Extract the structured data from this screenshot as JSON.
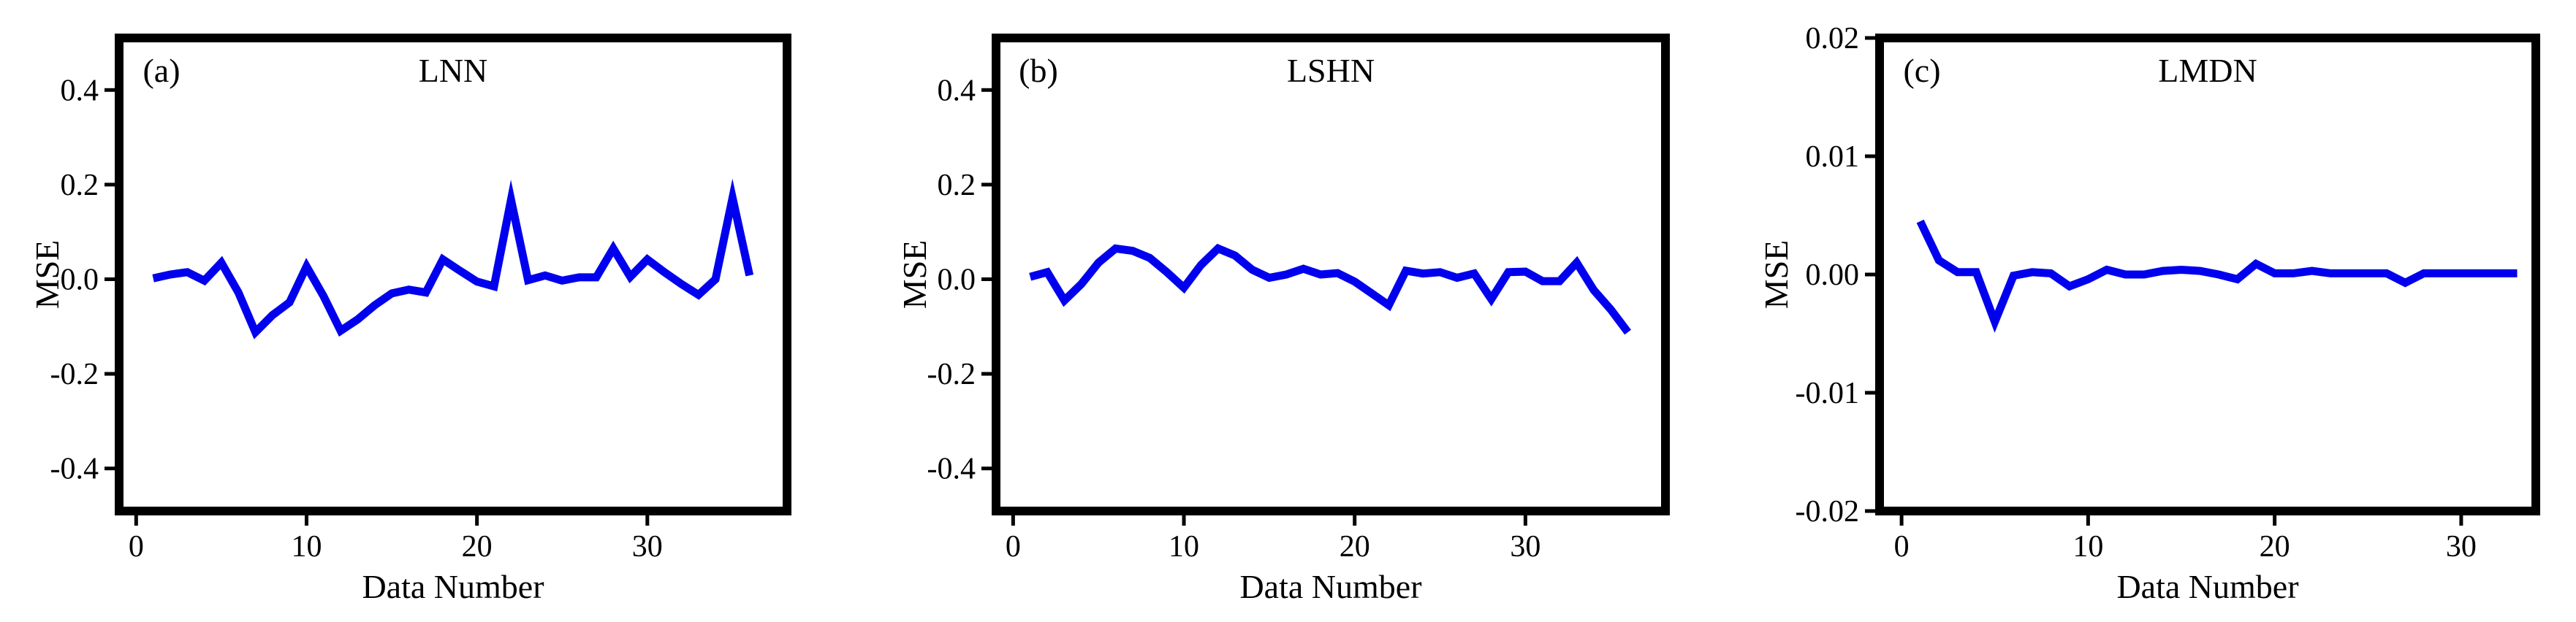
{
  "figure": {
    "background": "#ffffff",
    "border_color": "#000000",
    "text_color": "#000000",
    "accent_line_color": "#0000ee"
  },
  "chart_data": [
    {
      "type": "line",
      "panel_label": "(a)",
      "title": "LNN",
      "xlabel": "Data Number",
      "ylabel": "MSE",
      "line_color": "#0000ee",
      "grid": false,
      "legend": false,
      "xlim": [
        -1,
        38.2
      ],
      "ylim": [
        -0.49,
        0.51
      ],
      "xticks": {
        "values": [
          0,
          10,
          20,
          30
        ],
        "labels": [
          "0",
          "10",
          "20",
          "30"
        ]
      },
      "yticks": {
        "values": [
          0.4,
          0.2,
          0.0,
          -0.2,
          -0.4
        ],
        "labels": [
          "0.4",
          "0.2",
          "0.0",
          "-0.2",
          "-0.4"
        ]
      },
      "x": [
        1,
        2,
        3,
        4,
        5,
        6,
        7,
        8,
        9,
        10,
        11,
        12,
        13,
        14,
        15,
        16,
        17,
        18,
        19,
        20,
        21,
        22,
        23,
        24,
        25,
        26,
        27,
        28,
        29,
        30,
        31,
        32,
        33,
        34,
        35,
        36
      ],
      "y": [
        0.002,
        0.01,
        0.015,
        -0.003,
        0.035,
        -0.028,
        -0.112,
        -0.076,
        -0.049,
        0.027,
        -0.036,
        -0.109,
        -0.085,
        -0.055,
        -0.03,
        -0.022,
        -0.028,
        0.042,
        0.018,
        -0.005,
        -0.015,
        0.168,
        -0.002,
        0.008,
        -0.003,
        0.004,
        0.004,
        0.065,
        0.005,
        0.042,
        0.015,
        -0.01,
        -0.033,
        0.0,
        0.172,
        0.008
      ]
    },
    {
      "type": "line",
      "panel_label": "(b)",
      "title": "LSHN",
      "xlabel": "Data Number",
      "ylabel": "MSE",
      "line_color": "#0000ee",
      "grid": false,
      "legend": false,
      "xlim": [
        -1,
        38.2
      ],
      "ylim": [
        -0.49,
        0.51
      ],
      "xticks": {
        "values": [
          0,
          10,
          20,
          30
        ],
        "labels": [
          "0",
          "10",
          "20",
          "30"
        ]
      },
      "yticks": {
        "values": [
          0.4,
          0.2,
          0.0,
          -0.2,
          -0.4
        ],
        "labels": [
          "0.4",
          "0.2",
          "0.0",
          "-0.2",
          "-0.4"
        ]
      },
      "x": [
        1,
        2,
        3,
        4,
        5,
        6,
        7,
        8,
        9,
        10,
        11,
        12,
        13,
        14,
        15,
        16,
        17,
        18,
        19,
        20,
        21,
        22,
        23,
        24,
        25,
        26,
        27,
        28,
        29,
        30,
        31,
        32,
        33,
        34,
        35,
        36
      ],
      "y": [
        0.005,
        0.015,
        -0.045,
        -0.01,
        0.035,
        0.065,
        0.06,
        0.045,
        0.015,
        -0.018,
        0.03,
        0.065,
        0.05,
        0.02,
        0.003,
        0.01,
        0.022,
        0.01,
        0.013,
        -0.005,
        -0.03,
        -0.055,
        0.018,
        0.012,
        0.015,
        0.003,
        0.012,
        -0.042,
        0.015,
        0.016,
        -0.004,
        -0.004,
        0.035,
        -0.023,
        -0.064,
        -0.112
      ]
    },
    {
      "type": "line",
      "panel_label": "(c)",
      "title": "LMDN",
      "xlabel": "Data Number",
      "ylabel": "MSE",
      "line_color": "#0000ee",
      "grid": false,
      "legend": false,
      "xlim": [
        -1.18,
        34
      ],
      "ylim": [
        -0.02,
        0.02
      ],
      "xticks": {
        "values": [
          0,
          10,
          20,
          30
        ],
        "labels": [
          "0",
          "10",
          "20",
          "30"
        ]
      },
      "yticks": {
        "values": [
          0.02,
          0.01,
          0.0,
          -0.01,
          -0.02
        ],
        "labels": [
          "0.02",
          "0.01",
          "0.00",
          "-0.01",
          "-0.02"
        ]
      },
      "x": [
        1,
        2,
        3,
        4,
        5,
        6,
        7,
        8,
        9,
        10,
        11,
        12,
        13,
        14,
        15,
        16,
        17,
        18,
        19,
        20,
        21,
        22,
        23,
        24,
        25,
        26,
        27,
        28,
        29,
        30,
        31,
        32,
        33
      ],
      "y": [
        0.0045,
        0.0012,
        0.0002,
        0.0002,
        -0.004,
        -0.0001,
        0.0002,
        0.0001,
        -0.001,
        -0.0004,
        0.0004,
        0.0,
        0.0,
        0.0003,
        0.0004,
        0.0003,
        0.0,
        -0.0004,
        0.0009,
        0.0001,
        0.0001,
        0.0003,
        0.0001,
        0.0001,
        0.0001,
        0.0001,
        -0.0007,
        0.0001,
        0.0001,
        0.0001,
        0.0001,
        0.0001,
        0.0001
      ]
    }
  ]
}
